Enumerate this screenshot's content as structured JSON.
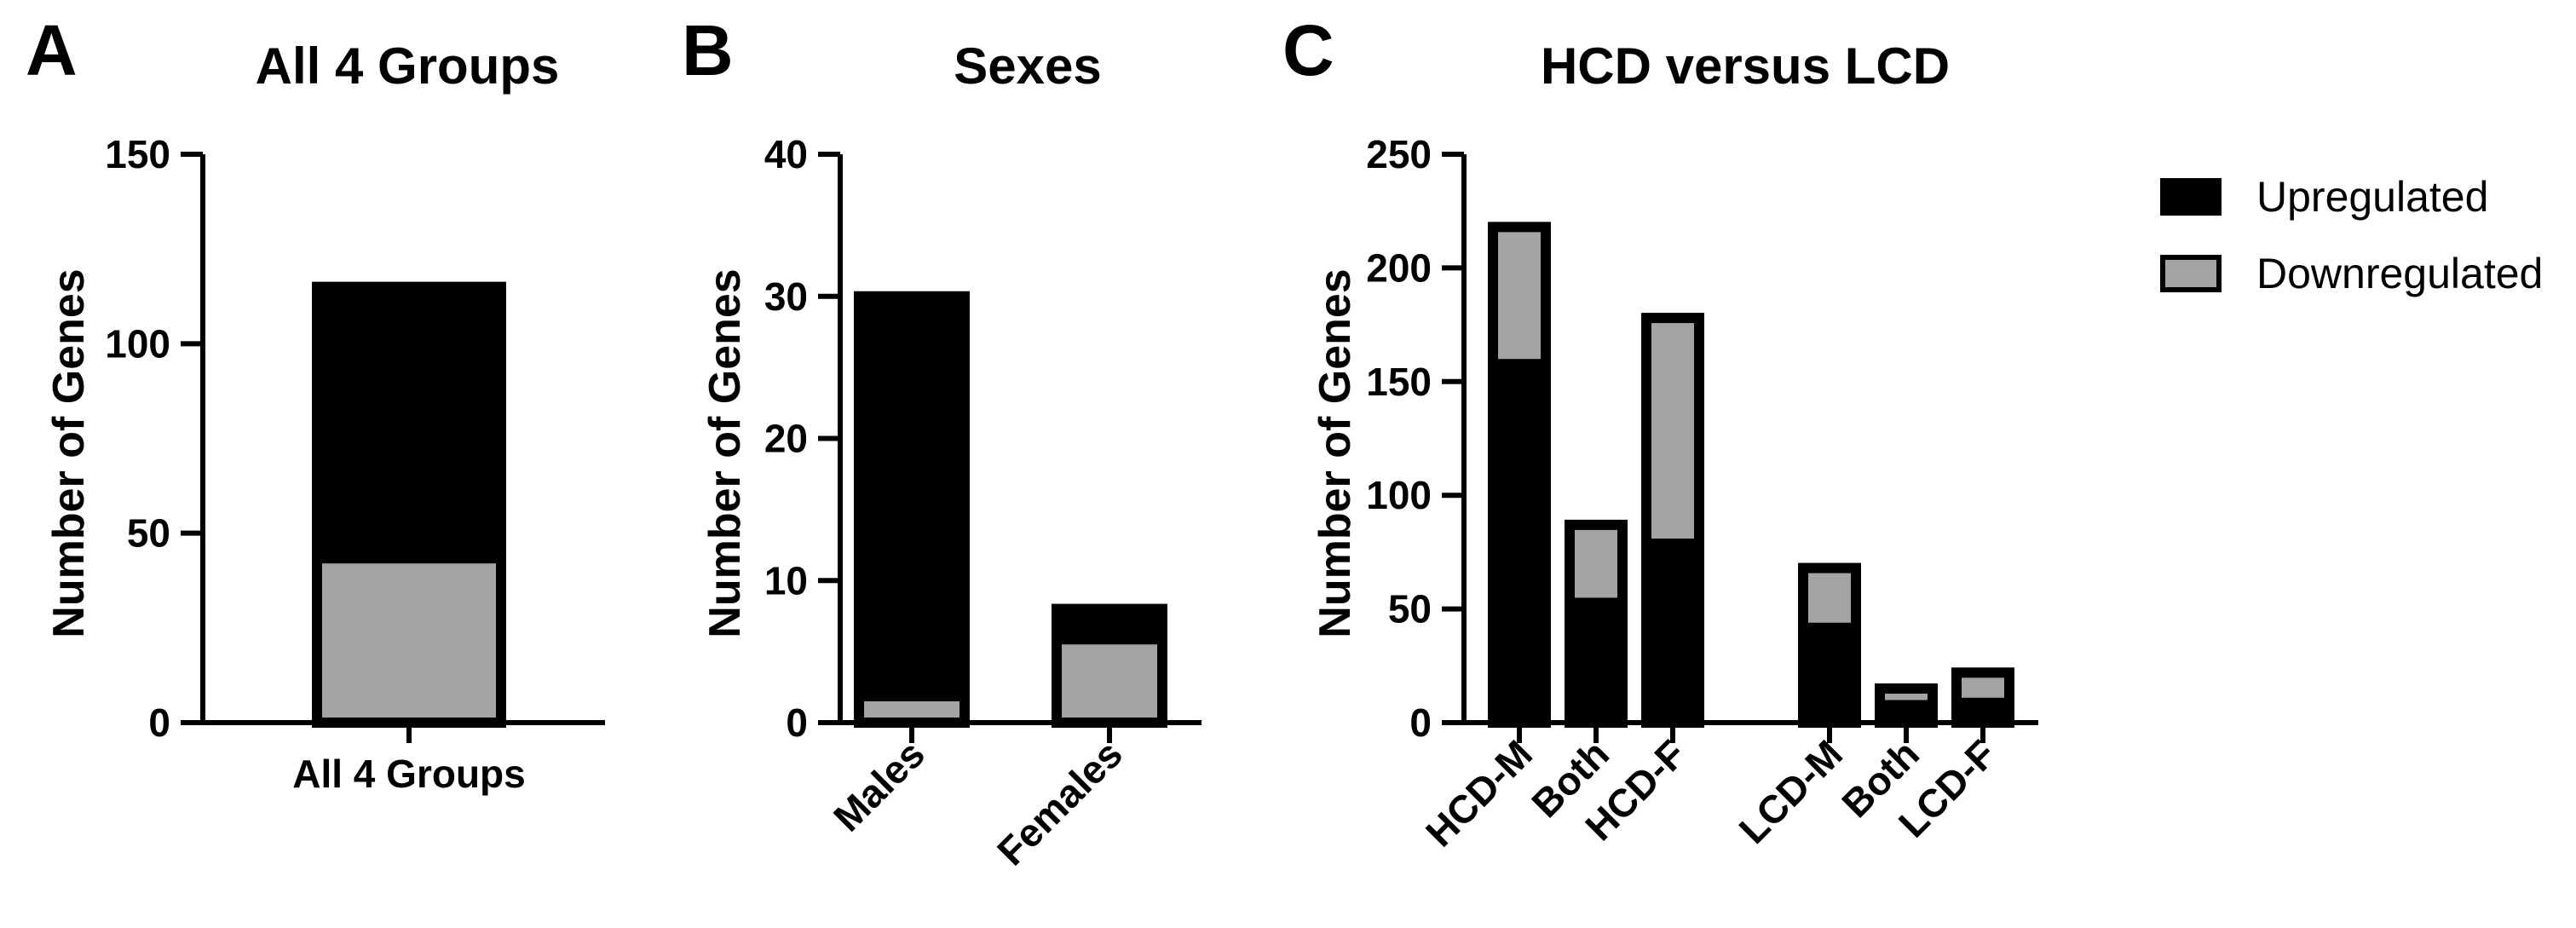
{
  "colors": {
    "upregulated": "#000000",
    "downregulated": "#a3a3a6",
    "outline": "#000000"
  },
  "legend": {
    "up_label": "Upregulated",
    "down_label": "Downregulated"
  },
  "chart_data": [
    {
      "type": "bar",
      "stacked": true,
      "panel": "A",
      "title": "All 4 Groups",
      "xlabel": "",
      "ylabel": "Number of Genes",
      "ylim": [
        0,
        150
      ],
      "yticks": [
        "0",
        "50",
        "100",
        "150"
      ],
      "categories": [
        "All 4 Groups"
      ],
      "series": [
        {
          "name": "Downregulated",
          "values": [
            42
          ]
        },
        {
          "name": "Upregulated",
          "values": [
            73
          ]
        }
      ]
    },
    {
      "type": "bar",
      "stacked": true,
      "panel": "B",
      "title": "Sexes",
      "xlabel": "",
      "ylabel": "Number of Genes",
      "ylim": [
        0,
        40
      ],
      "yticks": [
        "0",
        "10",
        "20",
        "30",
        "40"
      ],
      "categories": [
        "Males",
        "Females"
      ],
      "series": [
        {
          "name": "Downregulated",
          "values": [
            1.5,
            5.5
          ]
        },
        {
          "name": "Upregulated",
          "values": [
            28.5,
            2.5
          ]
        }
      ]
    },
    {
      "type": "bar",
      "stacked": true,
      "panel": "C",
      "title": "HCD versus LCD",
      "xlabel": "",
      "ylabel": "Number of Genes",
      "ylim": [
        0,
        250
      ],
      "yticks": [
        "0",
        "50",
        "100",
        "150",
        "200",
        "250"
      ],
      "categories": [
        "HCD-M",
        "Both",
        "HCD-F",
        "LCD-M",
        "Both",
        "LCD-F"
      ],
      "series": [
        {
          "name": "Upregulated",
          "values": [
            160,
            55,
            81,
            44,
            10,
            11
          ]
        },
        {
          "name": "Downregulated",
          "values": [
            58,
            32,
            97,
            24,
            5,
            11
          ]
        }
      ]
    }
  ]
}
